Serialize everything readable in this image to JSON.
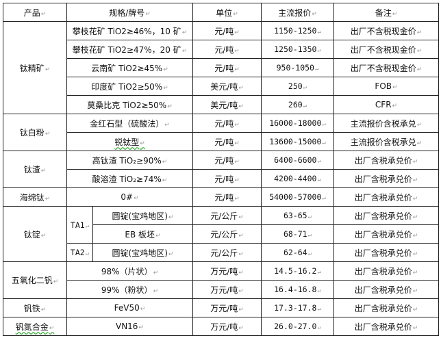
{
  "header": {
    "product": "产品",
    "spec": "规格/牌号",
    "unit": "单位",
    "price": "主流报价",
    "note": "备注"
  },
  "groups": {
    "titanium_concentrate": {
      "name": "钛精矿",
      "rows": [
        {
          "spec": "攀枝花矿 TiO2≥46%，10 矿",
          "unit": "元/吨",
          "price": "1150-1250",
          "note": "出厂不含税现金价"
        },
        {
          "spec": "攀枝花矿 TiO2≥47%，20 矿",
          "unit": "元/吨",
          "price": "1250-1350",
          "note": "出厂不含税现金价"
        },
        {
          "spec": "云南矿 TiO2≥45%",
          "unit": "元/吨",
          "price": "950-1050",
          "note": "出厂不含税现金价"
        },
        {
          "spec": "印度矿 TiO2≥50%",
          "unit": "美元/吨",
          "price": "250",
          "note": "FOB"
        },
        {
          "spec": "莫桑比克 TiO2≥50%",
          "unit": "美元/吨",
          "price": "260",
          "note": "CFR"
        }
      ]
    },
    "titanium_dioxide": {
      "name": "钛白粉",
      "rows": [
        {
          "spec": "金红石型（硫酸法）",
          "unit": "元/吨",
          "price": "16000-18000",
          "note": "主流报价含税承兑"
        },
        {
          "spec": "锐钛型",
          "unit": "元/吨",
          "price": "13600-15000",
          "note": "主流报价含税承兑"
        }
      ]
    },
    "titanium_slag": {
      "name": "钛渣",
      "rows": [
        {
          "spec": "高钛渣 TiO₂≥90%",
          "unit": "元/吨",
          "price": "6400-6600",
          "note": "出厂含税承兑价"
        },
        {
          "spec": "酸溶渣 TiO₂≥74%",
          "unit": "元/吨",
          "price": "4200-4400",
          "note": "出厂含税承兑价"
        }
      ]
    },
    "sponge_titanium": {
      "name": "海绵钛",
      "rows": [
        {
          "spec": "0#",
          "unit": "元/吨",
          "price": "54000-57000",
          "note": "出厂含税承兑价"
        }
      ]
    },
    "titanium_ingot": {
      "name": "钛锭",
      "sub1": "TA1",
      "sub2": "TA2",
      "rows": [
        {
          "spec": "圆锭(宝鸡地区)",
          "unit": "元/公斤",
          "price": "63-65",
          "note": "出厂含税承兑价"
        },
        {
          "spec": "EB 板坯",
          "unit": "元/公斤",
          "price": "68-71",
          "note": "出厂含税承兑价"
        },
        {
          "spec": "圆锭(宝鸡地区)",
          "unit": "元/公斤",
          "price": "62-64",
          "note": "出厂含税承兑价"
        }
      ]
    },
    "vanadium_pentoxide": {
      "name": "五氧化二钒",
      "rows": [
        {
          "spec": "98%（片状）",
          "unit": "万元/吨",
          "price": "14.5-16.2",
          "note": "出厂含税承兑价"
        },
        {
          "spec": "99%（粉状）",
          "unit": "万元/吨",
          "price": "16.4-16.8",
          "note": "出厂含税承兑价"
        }
      ]
    },
    "ferrovanadium": {
      "name": "钒铁",
      "rows": [
        {
          "spec": "FeV50",
          "unit": "万元/吨",
          "price": "17.3-17.8",
          "note": "出厂含税承兑价"
        }
      ]
    },
    "vanadium_nitrogen": {
      "name": "钒氮合金",
      "rows": [
        {
          "spec": "VN16",
          "unit": "万元/吨",
          "price": "26.0-27.0",
          "note": "出厂含税承兑价"
        }
      ]
    }
  }
}
